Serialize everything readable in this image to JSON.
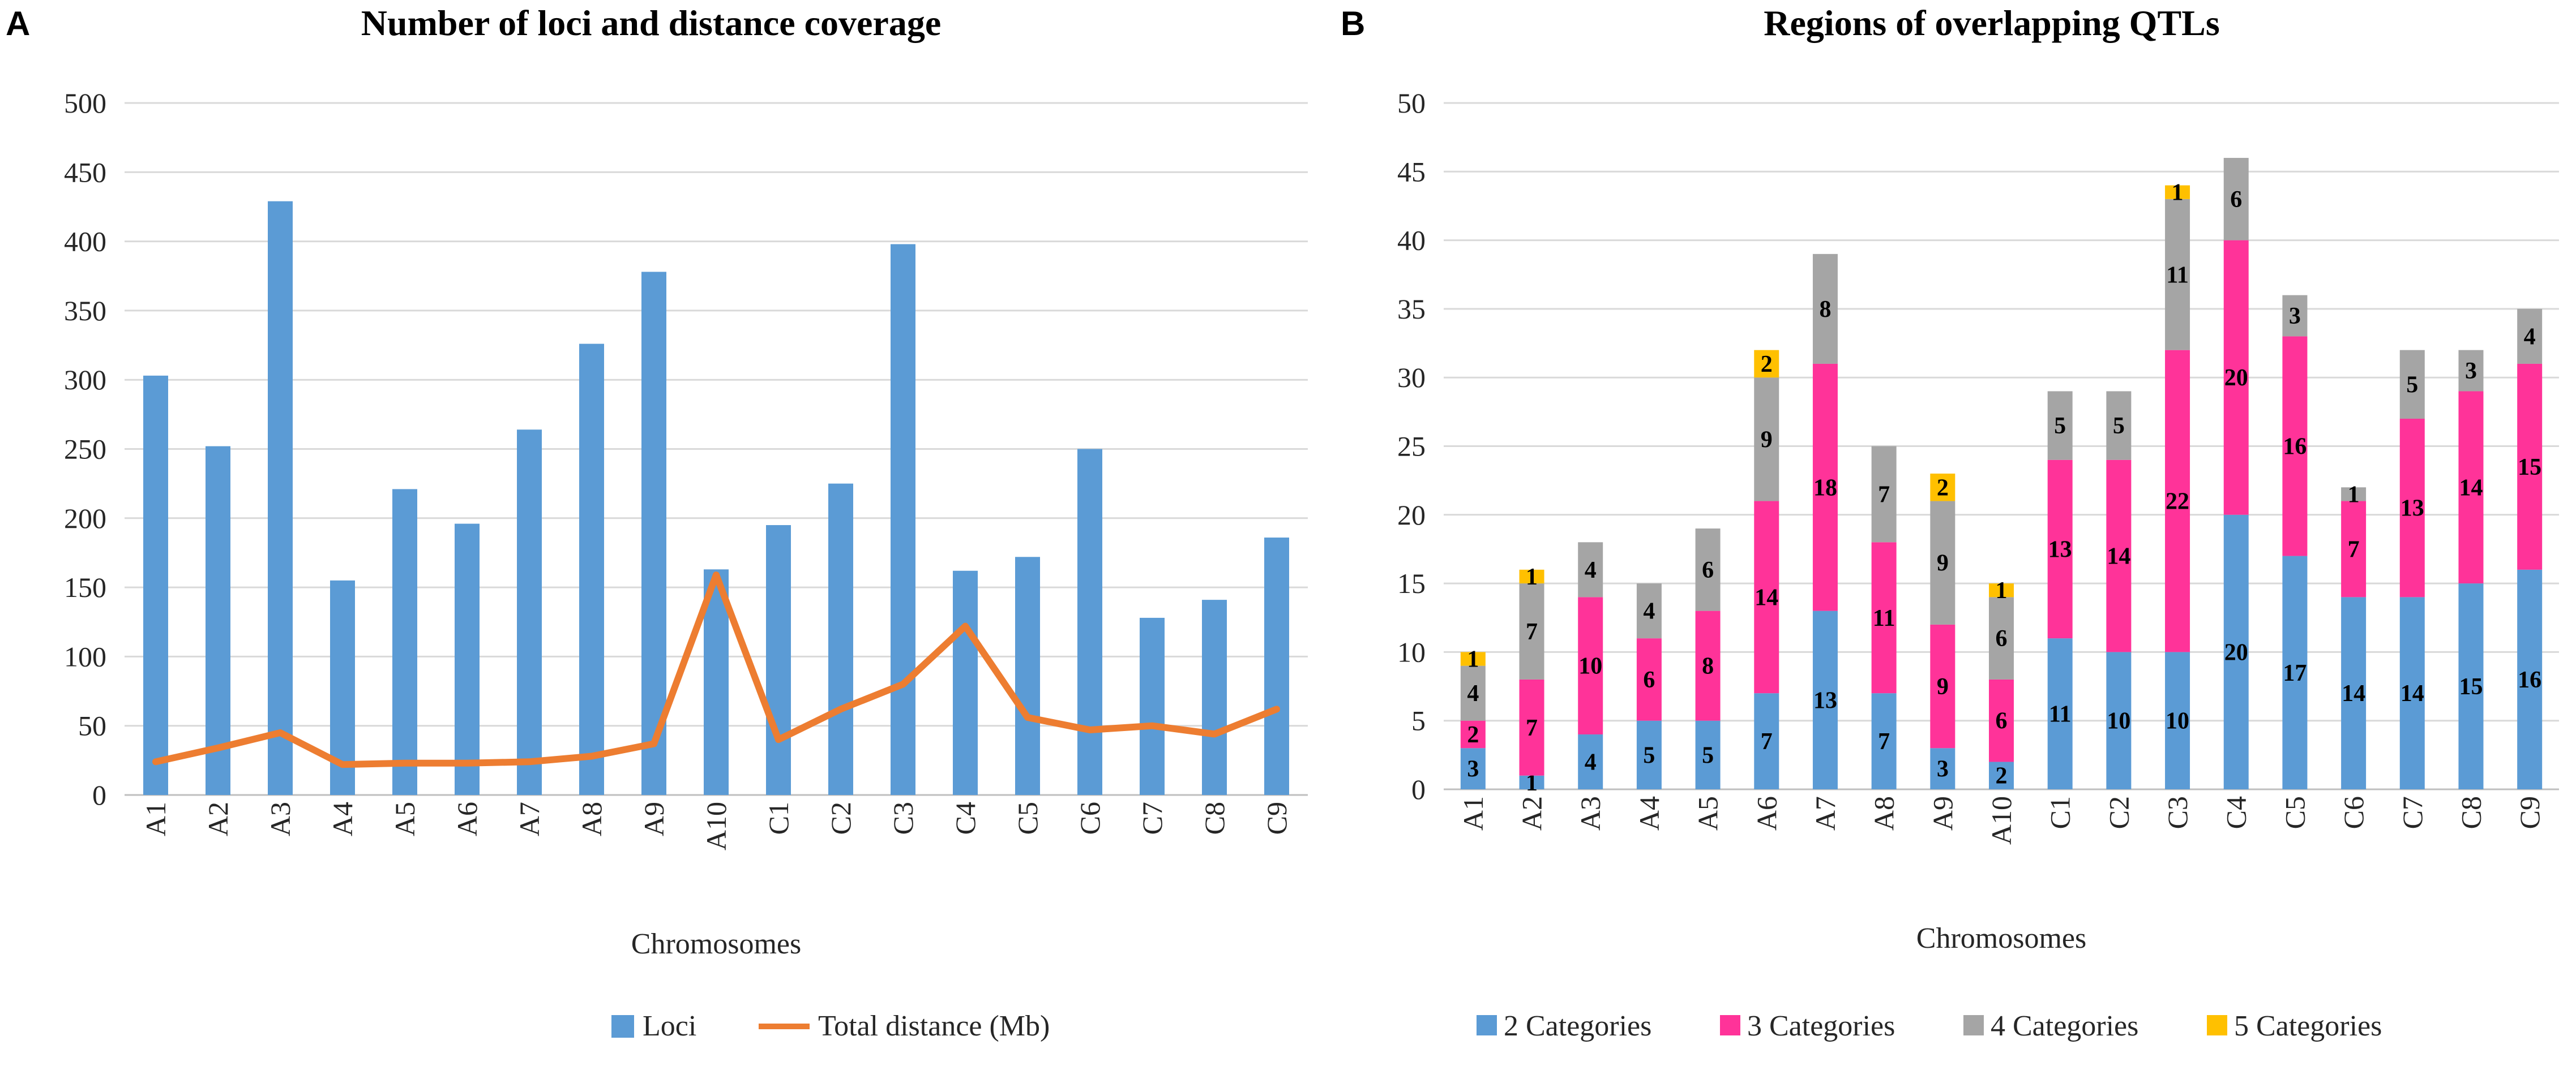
{
  "chart_data": [
    {
      "panel": "A",
      "type": "bar",
      "title": "Number of loci and distance coverage",
      "xlabel": "Chromosomes",
      "ylabel": "",
      "ylim": [
        0,
        500
      ],
      "yticks": [
        0,
        50,
        100,
        150,
        200,
        250,
        300,
        350,
        400,
        450,
        500
      ],
      "categories": [
        "A1",
        "A2",
        "A3",
        "A4",
        "A5",
        "A6",
        "A7",
        "A8",
        "A9",
        "A10",
        "C1",
        "C2",
        "C3",
        "C4",
        "C5",
        "C6",
        "C7",
        "C8",
        "C9"
      ],
      "series": [
        {
          "name": "Loci",
          "type": "bar",
          "color": "#5b9bd5",
          "values": [
            303,
            252,
            429,
            155,
            221,
            196,
            264,
            326,
            378,
            163,
            195,
            225,
            398,
            162,
            172,
            250,
            128,
            141,
            186
          ]
        },
        {
          "name": "Total distance (Mb)",
          "type": "line",
          "color": "#ed7d31",
          "values": [
            24,
            34,
            45,
            22,
            23,
            23,
            24,
            28,
            37,
            159,
            40,
            62,
            80,
            122,
            56,
            47,
            50,
            44,
            62
          ]
        }
      ],
      "legend": "bottom",
      "grid": true
    },
    {
      "panel": "B",
      "type": "bar",
      "stacked": true,
      "title": "Regions of overlapping QTLs",
      "xlabel": "Chromosomes",
      "ylabel": "",
      "ylim": [
        0,
        50
      ],
      "yticks": [
        0,
        5,
        10,
        15,
        20,
        25,
        30,
        35,
        40,
        45,
        50
      ],
      "categories": [
        "A1",
        "A2",
        "A3",
        "A4",
        "A5",
        "A6",
        "A7",
        "A8",
        "A9",
        "A10",
        "C1",
        "C2",
        "C3",
        "C4",
        "C5",
        "C6",
        "C7",
        "C8",
        "C9"
      ],
      "series": [
        {
          "name": "2 Categories",
          "color": "#5b9bd5",
          "values": [
            3,
            1,
            4,
            5,
            5,
            7,
            13,
            7,
            3,
            2,
            11,
            10,
            10,
            20,
            17,
            14,
            14,
            15,
            16
          ]
        },
        {
          "name": "3 Categories",
          "color": "#ff3399",
          "values": [
            2,
            7,
            10,
            6,
            8,
            14,
            18,
            11,
            9,
            6,
            13,
            14,
            22,
            20,
            16,
            7,
            13,
            14,
            15
          ]
        },
        {
          "name": "4 Categories",
          "color": "#a5a5a5",
          "values": [
            4,
            7,
            4,
            4,
            6,
            9,
            8,
            7,
            9,
            6,
            5,
            5,
            11,
            6,
            3,
            1,
            5,
            3,
            4
          ]
        },
        {
          "name": "5 Categories",
          "color": "#ffc000",
          "values": [
            1,
            1,
            0,
            0,
            0,
            2,
            0,
            0,
            2,
            1,
            0,
            0,
            1,
            0,
            0,
            0,
            0,
            0,
            0
          ]
        }
      ],
      "legend": "bottom",
      "grid": true
    }
  ]
}
